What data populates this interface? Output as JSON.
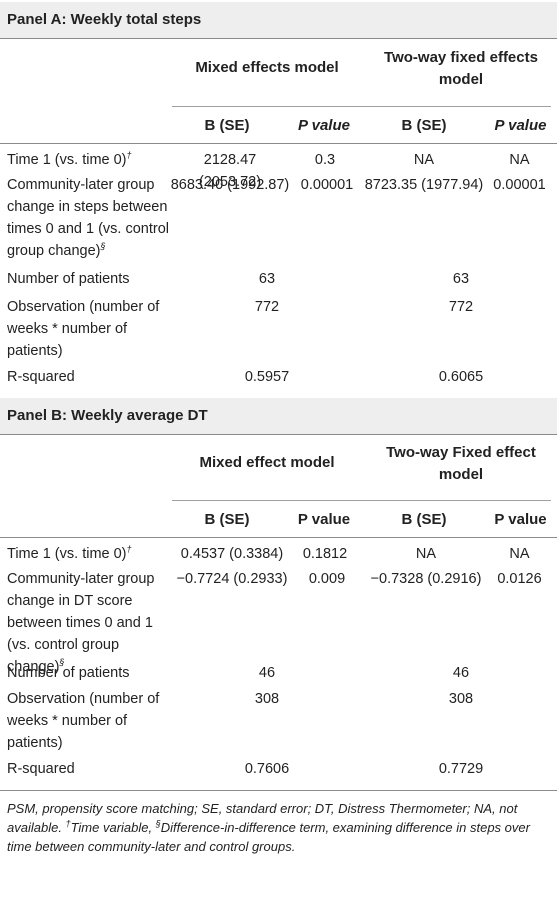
{
  "panel_a": {
    "title": "Panel A: Weekly total steps",
    "group1": "Mixed effects model",
    "group2": "Two-way fixed effects model",
    "col_b": "B (SE)",
    "col_p": "P value",
    "rows": [
      {
        "label": "Time 1 (vs. time 0)",
        "sup": "†",
        "b1": "2128.47 (2053.72)",
        "p1": "0.3",
        "b2": "NA",
        "p2": "NA"
      },
      {
        "label": "Community-later group change in steps between times 0 and 1 (vs. control group change)",
        "sup": "§",
        "b1": "8683.40 (1992.87)",
        "p1": "0.00001",
        "b2": "8723.35 (1977.94)",
        "p2": "0.00001"
      },
      {
        "label": "Number of patients",
        "v1": "63",
        "v2": "63"
      },
      {
        "label": "Observation (number of weeks * number of patients)",
        "v1": "772",
        "v2": "772"
      },
      {
        "label": "R-squared",
        "v1": "0.5957",
        "v2": "0.6065"
      }
    ]
  },
  "panel_b": {
    "title": "Panel B: Weekly average DT",
    "group1": "Mixed effect model",
    "group2": "Two-way Fixed effect model",
    "col_b": "B (SE)",
    "col_p": "P value",
    "rows": [
      {
        "label": "Time 1 (vs. time 0)",
        "sup": "†",
        "b1": "0.4537 (0.3384)",
        "p1": "0.1812",
        "b2": "NA",
        "p2": "NA"
      },
      {
        "label": "Community-later group change in DT score between times 0 and 1 (vs. control group change)",
        "sup": "§",
        "b1": "−0.7724 (0.2933)",
        "p1": "0.009",
        "b2": "−0.7328 (0.2916)",
        "p2": "0.0126"
      },
      {
        "label": "Number of patients",
        "v1": "46",
        "v2": "46"
      },
      {
        "label": "Observation (number of weeks * number of patients)",
        "v1": "308",
        "v2": "308"
      },
      {
        "label": "R-squared",
        "v1": "0.7606",
        "v2": "0.7729"
      }
    ]
  },
  "footnote": {
    "main": "PSM, propensity score matching; SE, standard error; DT, Distress Thermometer; NA, not available.",
    "time_sup": "†",
    "time_text": "Time variable, ",
    "did_sup": "§",
    "did_text": "Difference-in-difference term, examining difference in steps over time between community-later and control groups."
  }
}
